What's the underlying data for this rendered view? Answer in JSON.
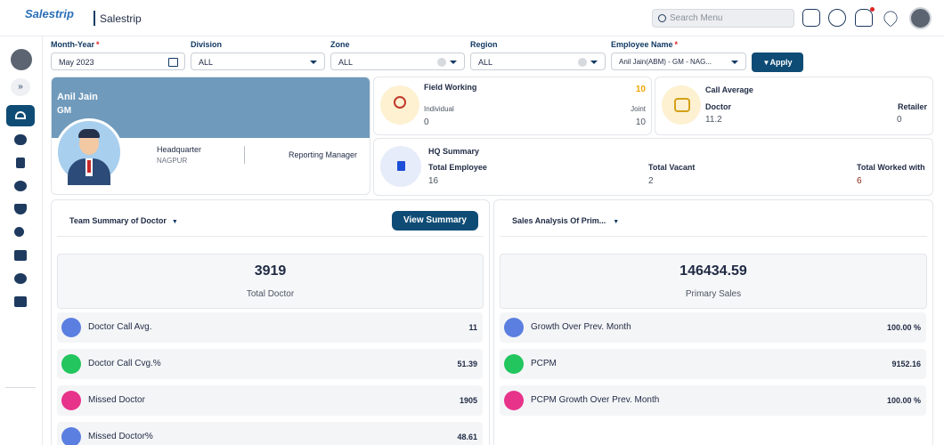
{
  "header": {
    "brand": "Salestrip",
    "app_title": "Salestrip",
    "search": "Search Menu"
  },
  "filters": [
    {
      "label": "Month-Year",
      "required": "*",
      "value": "May 2023"
    },
    {
      "label": "Division",
      "value": "ALL"
    },
    {
      "label": "Zone",
      "value": "ALL"
    },
    {
      "label": "Region",
      "value": "ALL"
    },
    {
      "label": "Employee Name",
      "required": "*",
      "value": "Anil Jain(ABM) - GM - NAG..."
    }
  ],
  "apply": "Apply",
  "profile": {
    "name": "Anil Jain",
    "designation": "GM",
    "headquarter_label": "Headquarter",
    "headquarter": "NAGPUR",
    "reporting_manager_label": "Reporting Manager"
  },
  "field_working": {
    "title": "Field Working",
    "total": 10,
    "individual_label": "Individual",
    "individual": 0,
    "joint_label": "Joint",
    "joint": 10
  },
  "call_average": {
    "title": "Call Average",
    "doctor_label": "Doctor",
    "doctor": 11.2,
    "retailer_label": "Retailer",
    "retailer": 0
  },
  "hq_summary": {
    "title": "HQ Summary",
    "items": [
      {
        "label": "Total Employee",
        "value": 16
      },
      {
        "label": "Total Vacant",
        "value": 2
      },
      {
        "label": "Total Worked with",
        "value": 6
      }
    ]
  },
  "team_summary": {
    "dropdown": "Team Summary of Doctor",
    "button": "View Summary",
    "total": 3919,
    "total_label": "Total Doctor",
    "rows": [
      {
        "label": "Doctor Call Avg.",
        "value": 11
      },
      {
        "label": "Doctor Call Cvg.%",
        "value": 51.39
      },
      {
        "label": "Missed Doctor",
        "value": 1905
      },
      {
        "label": "Missed Doctor%",
        "value": 48.61
      }
    ]
  },
  "sales_analysis": {
    "dropdown": "Sales Analysis Of Prim...",
    "total": "146434.59",
    "total_label": "Primary Sales",
    "rows": [
      {
        "label": "Growth Over Prev. Month",
        "value": "100.00 %"
      },
      {
        "label": "PCPM",
        "value": 9152.16
      },
      {
        "label": "PCPM Growth Over Prev. Month",
        "value": "100.00 %"
      }
    ]
  }
}
